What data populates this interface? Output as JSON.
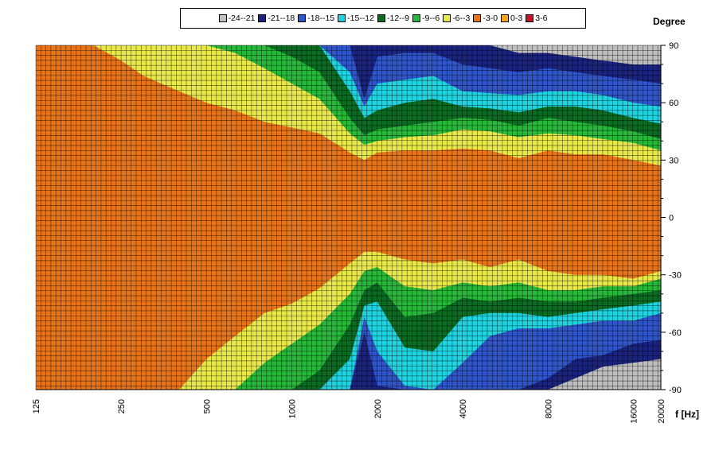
{
  "chart_data": {
    "type": "heatmap",
    "title": "",
    "xlabel": "f [Hz]",
    "ylabel": "Degree",
    "x_scale": "log",
    "x_ticks": [
      "125",
      "250",
      "500",
      "1000",
      "2000",
      "4000",
      "8000",
      "16000",
      "20000"
    ],
    "y_ticks": [
      "90",
      "60",
      "30",
      "0",
      "-30",
      "-60",
      "-90"
    ],
    "ylim": [
      -90,
      90
    ],
    "xlim": [
      125,
      20000
    ],
    "legend_position": "top-center",
    "bands": [
      {
        "label": "-24--21",
        "color": "#bfbfbf"
      },
      {
        "label": "-21--18",
        "color": "#1a237e"
      },
      {
        "label": "-18--15",
        "color": "#2f55c8"
      },
      {
        "label": "-15--12",
        "color": "#1fd4e0"
      },
      {
        "label": "-12--9",
        "color": "#0b6b22"
      },
      {
        "label": "-9--6",
        "color": "#27b83a"
      },
      {
        "label": "-6--3",
        "color": "#e8e84a"
      },
      {
        "label": "-3-0",
        "color": "#e8741a"
      },
      {
        "label": "0-3",
        "color": "#f4a520"
      },
      {
        "label": "3-6",
        "color": "#c0152a"
      }
    ],
    "contours": {
      "freq": [
        125,
        200,
        250,
        300,
        400,
        500,
        630,
        800,
        1000,
        1250,
        1600,
        1800,
        2000,
        2500,
        3150,
        4000,
        5000,
        6300,
        8000,
        10000,
        12500,
        16000,
        20000
      ],
      "upper_db_minus3": [
        90,
        90,
        82,
        74,
        66,
        60,
        56,
        50,
        47,
        44,
        34,
        30,
        34,
        35,
        35,
        36,
        35,
        31,
        35,
        33,
        33,
        30,
        27
      ],
      "upper_db_minus6": [
        90,
        90,
        90,
        90,
        90,
        90,
        86,
        78,
        70,
        62,
        44,
        38,
        40,
        42,
        43,
        46,
        45,
        42,
        44,
        43,
        41,
        39,
        35
      ],
      "upper_db_minus9": [
        90,
        90,
        90,
        90,
        90,
        90,
        90,
        90,
        84,
        76,
        52,
        43,
        46,
        48,
        50,
        52,
        51,
        48,
        52,
        50,
        48,
        45,
        41
      ],
      "upper_db_minus12": [
        90,
        90,
        90,
        90,
        90,
        90,
        90,
        90,
        90,
        90,
        66,
        52,
        56,
        60,
        62,
        58,
        57,
        55,
        58,
        58,
        56,
        52,
        49
      ],
      "upper_db_minus15": [
        90,
        90,
        90,
        90,
        90,
        90,
        90,
        90,
        90,
        90,
        76,
        58,
        70,
        72,
        74,
        66,
        65,
        64,
        66,
        66,
        64,
        60,
        58
      ],
      "upper_db_minus18": [
        90,
        90,
        90,
        90,
        90,
        90,
        90,
        90,
        90,
        90,
        90,
        62,
        84,
        86,
        86,
        80,
        78,
        76,
        78,
        76,
        74,
        72,
        70
      ],
      "upper_db_minus21": [
        90,
        90,
        90,
        90,
        90,
        90,
        90,
        90,
        90,
        90,
        90,
        90,
        90,
        90,
        90,
        90,
        90,
        86,
        86,
        84,
        82,
        80,
        80
      ],
      "lower_db_minus3": [
        -90,
        -90,
        -90,
        -90,
        -90,
        -74,
        -62,
        -50,
        -45,
        -37,
        -24,
        -18,
        -18,
        -22,
        -24,
        -22,
        -26,
        -22,
        -28,
        -30,
        -30,
        -32,
        -28
      ],
      "lower_db_minus6": [
        -90,
        -90,
        -90,
        -90,
        -90,
        -90,
        -90,
        -76,
        -66,
        -56,
        -40,
        -28,
        -26,
        -36,
        -38,
        -34,
        -36,
        -34,
        -38,
        -38,
        -36,
        -36,
        -32
      ],
      "lower_db_minus9": [
        -90,
        -90,
        -90,
        -90,
        -90,
        -90,
        -90,
        -90,
        -90,
        -80,
        -56,
        -38,
        -34,
        -52,
        -50,
        -42,
        -44,
        -42,
        -44,
        -44,
        -42,
        -40,
        -38
      ],
      "lower_db_minus12": [
        -90,
        -90,
        -90,
        -90,
        -90,
        -90,
        -90,
        -90,
        -90,
        -90,
        -74,
        -46,
        -44,
        -68,
        -70,
        -52,
        -50,
        -50,
        -52,
        -50,
        -48,
        -46,
        -44
      ],
      "lower_db_minus15": [
        -90,
        -90,
        -90,
        -90,
        -90,
        -90,
        -90,
        -90,
        -90,
        -90,
        -90,
        -52,
        -70,
        -88,
        -90,
        -76,
        -62,
        -58,
        -58,
        -56,
        -54,
        -54,
        -50
      ],
      "lower_db_minus18": [
        -90,
        -90,
        -90,
        -90,
        -90,
        -90,
        -90,
        -90,
        -90,
        -90,
        -90,
        -60,
        -88,
        -90,
        -90,
        -90,
        -90,
        -90,
        -84,
        -74,
        -72,
        -66,
        -64
      ],
      "lower_db_minus21": [
        -90,
        -90,
        -90,
        -90,
        -90,
        -90,
        -90,
        -90,
        -90,
        -90,
        -90,
        -90,
        -90,
        -90,
        -90,
        -90,
        -90,
        -90,
        -90,
        -84,
        -78,
        -76,
        -74
      ]
    }
  }
}
